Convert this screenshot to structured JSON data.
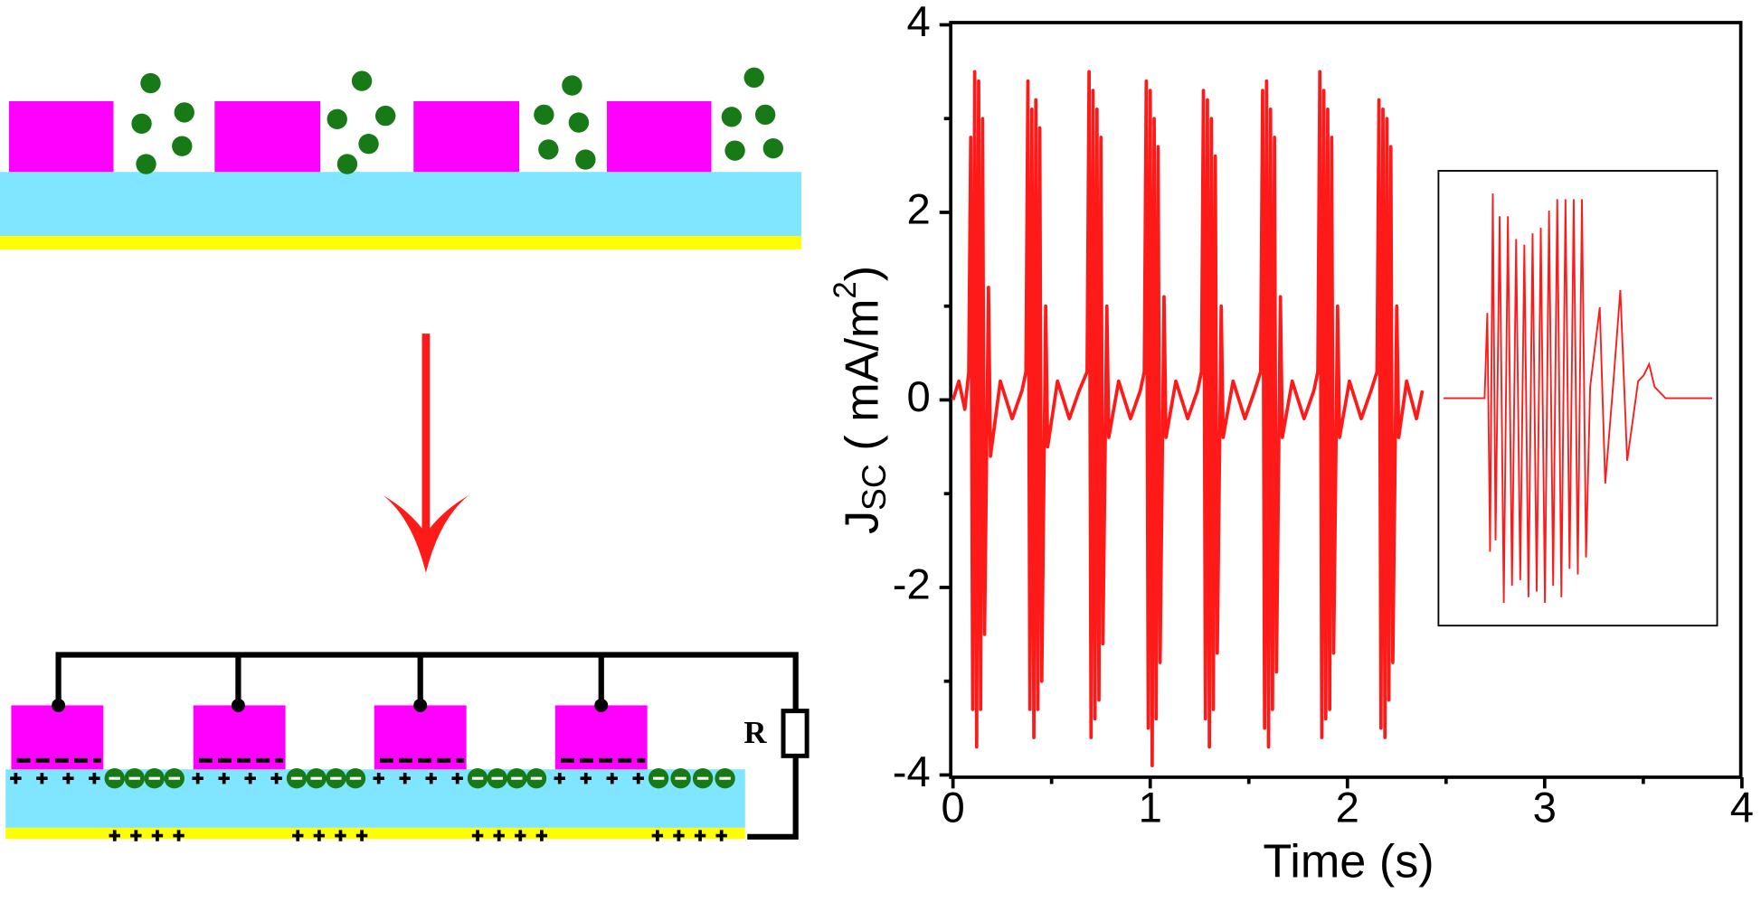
{
  "diagram": {
    "resistor_label": "R"
  },
  "chart_data": {
    "type": "line",
    "color": "#ff1a1a",
    "xlabel": "Time (s)",
    "ylabel": {
      "main": "J",
      "sub": "SC",
      "rest": " ( mA/m",
      "sup": "2",
      "end": ")"
    },
    "xlim": [
      0,
      4
    ],
    "ylim": [
      -4,
      4
    ],
    "xticks": [
      0,
      1,
      2,
      3,
      4
    ],
    "yticks": [
      -4,
      -2,
      0,
      2,
      4
    ],
    "xminorticks": [
      0.5,
      1.5,
      2.5,
      3.5
    ],
    "yminorticks": [
      -3,
      -1,
      1,
      3
    ],
    "x": [
      0,
      0.03,
      0.06,
      0.08,
      0.09,
      0.1,
      0.11,
      0.12,
      0.13,
      0.14,
      0.15,
      0.16,
      0.18,
      0.19,
      0.24,
      0.3,
      0.35,
      0.37,
      0.38,
      0.39,
      0.4,
      0.41,
      0.42,
      0.43,
      0.44,
      0.45,
      0.47,
      0.48,
      0.53,
      0.59,
      0.64,
      0.68,
      0.69,
      0.7,
      0.71,
      0.72,
      0.73,
      0.74,
      0.75,
      0.76,
      0.78,
      0.79,
      0.84,
      0.9,
      0.95,
      0.97,
      0.98,
      0.99,
      1.0,
      1.01,
      1.02,
      1.03,
      1.04,
      1.05,
      1.07,
      1.08,
      1.13,
      1.19,
      1.24,
      1.26,
      1.27,
      1.28,
      1.29,
      1.3,
      1.31,
      1.32,
      1.33,
      1.34,
      1.36,
      1.37,
      1.42,
      1.48,
      1.53,
      1.56,
      1.57,
      1.58,
      1.59,
      1.6,
      1.61,
      1.62,
      1.63,
      1.64,
      1.66,
      1.67,
      1.72,
      1.78,
      1.83,
      1.85,
      1.86,
      1.87,
      1.88,
      1.89,
      1.9,
      1.91,
      1.92,
      1.93,
      1.95,
      1.96,
      2.01,
      2.07,
      2.12,
      2.15,
      2.16,
      2.17,
      2.18,
      2.19,
      2.2,
      2.21,
      2.22,
      2.23,
      2.25,
      2.26,
      2.3,
      2.35,
      2.38
    ],
    "values": [
      0,
      0.2,
      -0.1,
      0.3,
      2.8,
      -3.3,
      3.5,
      -3.7,
      3.4,
      -3.3,
      3.0,
      -2.5,
      1.2,
      -0.6,
      0.2,
      -0.2,
      0.1,
      0.3,
      3.4,
      -3.3,
      3.1,
      -3.6,
      3.2,
      -3.3,
      2.9,
      -3.0,
      1.0,
      -0.5,
      0.2,
      -0.2,
      0.1,
      0.3,
      3.5,
      -3.6,
      3.3,
      -3.4,
      3.1,
      -3.2,
      2.8,
      -2.6,
      1.0,
      -0.4,
      0.2,
      -0.2,
      0.1,
      0.3,
      3.4,
      -3.5,
      3.3,
      -3.9,
      3.0,
      -3.4,
      2.7,
      -2.8,
      1.1,
      -0.4,
      0.2,
      -0.2,
      0.1,
      0.3,
      3.3,
      -3.4,
      3.2,
      -3.7,
      3.0,
      -3.3,
      2.6,
      -2.7,
      1.0,
      -0.4,
      0.2,
      -0.2,
      0.1,
      0.3,
      3.3,
      -3.5,
      3.4,
      -3.7,
      3.1,
      -3.3,
      2.8,
      -2.9,
      1.1,
      -0.4,
      0.2,
      -0.2,
      0.1,
      0.3,
      3.5,
      -3.6,
      3.3,
      -3.4,
      3.1,
      -3.3,
      2.8,
      -2.7,
      1.0,
      -0.4,
      0.2,
      -0.2,
      0.1,
      0.3,
      3.2,
      -3.5,
      3.1,
      -3.6,
      3.0,
      -3.2,
      2.7,
      -2.8,
      1.0,
      -0.4,
      0.2,
      -0.2,
      0.1
    ],
    "inset": {
      "type": "line",
      "xlim": [
        0,
        1
      ],
      "ylim": [
        -4,
        4
      ],
      "x": [
        0.01,
        0.16,
        0.17,
        0.18,
        0.19,
        0.2,
        0.215,
        0.23,
        0.245,
        0.26,
        0.275,
        0.29,
        0.305,
        0.32,
        0.335,
        0.35,
        0.365,
        0.38,
        0.395,
        0.41,
        0.425,
        0.44,
        0.455,
        0.47,
        0.485,
        0.5,
        0.515,
        0.53,
        0.545,
        0.58,
        0.6,
        0.63,
        0.655,
        0.68,
        0.72,
        0.74,
        0.76,
        0.78,
        0.82,
        0.99
      ],
      "values": [
        0,
        0,
        1.5,
        -2.7,
        3.6,
        -2.5,
        3.2,
        -3.6,
        3.2,
        -3.3,
        2.8,
        -3.2,
        2.7,
        -3.5,
        2.9,
        -3.4,
        3.0,
        -3.6,
        3.3,
        -3.3,
        3.5,
        -3.5,
        3.5,
        -3.0,
        3.5,
        -3.1,
        3.5,
        -2.8,
        0.2,
        1.6,
        -1.5,
        0.3,
        1.9,
        -1.1,
        0.3,
        0.4,
        0.6,
        0.2,
        0,
        0
      ]
    }
  }
}
